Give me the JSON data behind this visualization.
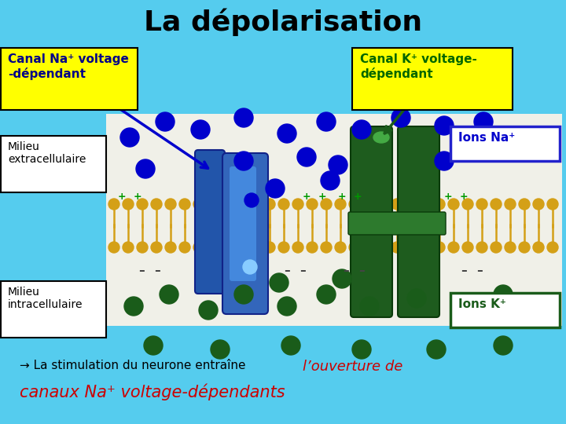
{
  "bg_color": "#55CCEE",
  "title": "La dépolarisation",
  "title_fontsize": 26,
  "title_color": "#000000",
  "title_weight": "bold",
  "canal_na_label": "Canal Na⁺ voltage\n-dépendant",
  "canal_k_label": "Canal K⁺ voltage-\ndépendant",
  "milieu_extra_label": "Milieu\nextracellulaire",
  "milieu_intra_label": "Milieu\nintracellulaire",
  "ions_na_label": "Ions Na⁺",
  "ions_k_label": "Ions K⁺",
  "na_blue": "#0000CC",
  "na_blue_dark": "#000088",
  "k_green": "#1A5C1A",
  "k_green_dark": "#006600",
  "yellow_label_bg": "#FFFF00",
  "white_label_bg": "#FFFFFF",
  "label_border_color": "#000000",
  "red_text": "#CC0000",
  "lipid_color": "#D4A017",
  "membrane_bg": "#E8E8E0",
  "blue_ch1": "#2244AA",
  "blue_ch2": "#3366CC",
  "green_ch": "#1E5C1E",
  "bottom_black": "→ La stimulation du neurone entraîne ",
  "bottom_red_1": "l’ouverture de",
  "bottom_red_2": "canaux Na⁺ voltage-dépendants"
}
